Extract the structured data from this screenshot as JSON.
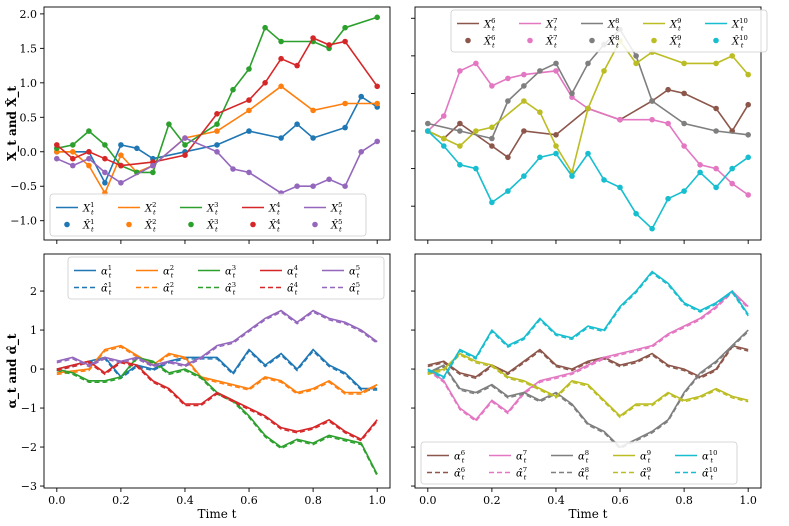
{
  "chart_data": [
    {
      "panel": "top-left",
      "type": "line",
      "xlim": [
        -0.04,
        1.04
      ],
      "ylim": [
        -1.28,
        2.1
      ],
      "yticks": [
        -1.0,
        -0.5,
        0.0,
        0.5,
        1.0,
        1.5,
        2.0
      ],
      "ytick_labels": [
        "−1.0",
        "−0.5",
        "0.0",
        "0.5",
        "1.0",
        "1.5",
        "2.0"
      ],
      "ylabel": "X_t and X̂_t",
      "legend_loc": "lower-left",
      "series": [
        {
          "name": "X1",
          "label": "X_t^1",
          "hat_label": "X̂_t^1",
          "color": "#1f77b4",
          "x": [
            0,
            0.1,
            0.15,
            0.2,
            0.25,
            0.3,
            0.4,
            0.5,
            0.6,
            0.7,
            0.75,
            0.8,
            0.9,
            0.95,
            1.0
          ],
          "y": [
            0.0,
            0.0,
            -0.45,
            0.1,
            0.05,
            -0.1,
            0.0,
            0.1,
            0.3,
            0.2,
            0.4,
            0.2,
            0.35,
            0.8,
            0.65
          ]
        },
        {
          "name": "X2",
          "label": "X_t^2",
          "hat_label": "X̂_t^2",
          "color": "#ff7f0e",
          "x": [
            0,
            0.05,
            0.1,
            0.15,
            0.2,
            0.25,
            0.3,
            0.4,
            0.5,
            0.6,
            0.7,
            0.8,
            0.9,
            1.0
          ],
          "y": [
            0.0,
            0.0,
            -0.2,
            -0.6,
            -0.05,
            -0.3,
            -0.2,
            0.2,
            0.3,
            0.6,
            0.95,
            0.6,
            0.7,
            0.7
          ]
        },
        {
          "name": "X3",
          "label": "X_t^3",
          "hat_label": "X̂_t^3",
          "color": "#2ca02c",
          "x": [
            0,
            0.05,
            0.1,
            0.15,
            0.2,
            0.25,
            0.3,
            0.35,
            0.4,
            0.5,
            0.55,
            0.6,
            0.65,
            0.7,
            0.8,
            0.85,
            0.9,
            1.0
          ],
          "y": [
            0.05,
            0.1,
            0.3,
            0.1,
            -0.2,
            -0.3,
            -0.3,
            0.4,
            0.1,
            0.4,
            0.9,
            1.2,
            1.8,
            1.6,
            1.6,
            1.5,
            1.8,
            1.95
          ]
        },
        {
          "name": "X4",
          "label": "X_t^4",
          "hat_label": "X̂_t^4",
          "color": "#d62728",
          "x": [
            0,
            0.05,
            0.1,
            0.15,
            0.2,
            0.3,
            0.4,
            0.5,
            0.6,
            0.65,
            0.7,
            0.75,
            0.8,
            0.85,
            0.9,
            1.0
          ],
          "y": [
            0.1,
            -0.1,
            0.0,
            -0.1,
            -0.2,
            -0.15,
            -0.05,
            0.55,
            0.75,
            1.0,
            1.35,
            1.25,
            1.65,
            1.55,
            1.6,
            0.95
          ]
        },
        {
          "name": "X5",
          "label": "X_t^5",
          "hat_label": "X̂_t^5",
          "color": "#9467bd",
          "x": [
            0,
            0.05,
            0.1,
            0.15,
            0.2,
            0.3,
            0.4,
            0.5,
            0.55,
            0.6,
            0.7,
            0.75,
            0.8,
            0.85,
            0.9,
            0.95,
            1.0
          ],
          "y": [
            -0.1,
            -0.2,
            -0.1,
            -0.3,
            -0.45,
            -0.2,
            0.2,
            0.0,
            -0.25,
            -0.3,
            -0.6,
            -0.5,
            -0.5,
            -0.4,
            -0.5,
            0.0,
            0.15
          ]
        }
      ]
    },
    {
      "panel": "top-right",
      "type": "line",
      "xlim": [
        -0.04,
        1.04
      ],
      "ylim": [
        -1.45,
        1.65
      ],
      "legend_loc": "top",
      "series": [
        {
          "name": "X6",
          "label": "X_t^6",
          "hat_label": "X̂_t^6",
          "color": "#8c564b",
          "x": [
            0,
            0.05,
            0.1,
            0.2,
            0.25,
            0.3,
            0.4,
            0.5,
            0.6,
            0.7,
            0.75,
            0.8,
            0.9,
            0.95,
            1.0
          ],
          "y": [
            0.0,
            -0.1,
            0.1,
            -0.2,
            -0.35,
            0.0,
            -0.05,
            0.3,
            0.15,
            0.4,
            0.55,
            0.5,
            0.3,
            0.0,
            0.35
          ]
        },
        {
          "name": "X7",
          "label": "X_t^7",
          "hat_label": "X̂_t^7",
          "color": "#e377c2",
          "x": [
            0,
            0.05,
            0.1,
            0.15,
            0.2,
            0.25,
            0.3,
            0.4,
            0.45,
            0.5,
            0.6,
            0.7,
            0.75,
            0.8,
            0.85,
            0.9,
            0.95,
            1.0
          ],
          "y": [
            0.0,
            0.2,
            0.8,
            0.9,
            0.6,
            0.7,
            0.75,
            0.8,
            0.45,
            0.3,
            0.15,
            0.15,
            0.1,
            -0.2,
            -0.45,
            -0.5,
            -0.7,
            -0.85
          ]
        },
        {
          "name": "X8",
          "label": "X_t^8",
          "hat_label": "X̂_t^8",
          "color": "#7f7f7f",
          "x": [
            0,
            0.1,
            0.2,
            0.25,
            0.3,
            0.35,
            0.4,
            0.45,
            0.5,
            0.55,
            0.6,
            0.65,
            0.7,
            0.8,
            0.9,
            1.0
          ],
          "y": [
            0.1,
            0.0,
            -0.1,
            0.4,
            0.6,
            0.8,
            0.9,
            0.5,
            0.9,
            1.15,
            1.35,
            1.0,
            0.4,
            0.1,
            0.0,
            -0.05
          ]
        },
        {
          "name": "X9",
          "label": "X_t^9",
          "hat_label": "X̂_t^9",
          "color": "#bcbd22",
          "x": [
            0,
            0.05,
            0.1,
            0.15,
            0.2,
            0.3,
            0.35,
            0.4,
            0.45,
            0.5,
            0.55,
            0.6,
            0.65,
            0.7,
            0.8,
            0.9,
            0.95,
            1.0
          ],
          "y": [
            0.0,
            -0.1,
            -0.2,
            0.0,
            0.05,
            0.4,
            0.25,
            -0.2,
            -0.55,
            0.3,
            0.8,
            1.2,
            0.9,
            1.05,
            0.9,
            0.9,
            1.0,
            0.75
          ]
        },
        {
          "name": "X10",
          "label": "X_t^10",
          "hat_label": "X̂_t^10",
          "color": "#17becf",
          "x": [
            0,
            0.05,
            0.1,
            0.15,
            0.2,
            0.25,
            0.3,
            0.35,
            0.4,
            0.45,
            0.5,
            0.55,
            0.6,
            0.65,
            0.7,
            0.75,
            0.8,
            0.85,
            0.9,
            0.95,
            1.0
          ],
          "y": [
            0.0,
            -0.2,
            -0.45,
            -0.5,
            -0.95,
            -0.8,
            -0.6,
            -0.35,
            -0.3,
            -0.6,
            -0.3,
            -0.65,
            -0.75,
            -1.1,
            -1.3,
            -0.9,
            -0.8,
            -0.55,
            -0.75,
            -0.5,
            -0.35
          ]
        }
      ]
    },
    {
      "panel": "bottom-left",
      "type": "line",
      "xlim": [
        -0.04,
        1.04
      ],
      "ylim": [
        -3.05,
        2.95
      ],
      "yticks": [
        -3,
        -2,
        -1,
        0,
        1,
        2
      ],
      "ytick_labels": [
        "−3",
        "−2",
        "−1",
        "0",
        "1",
        "2"
      ],
      "xticks": [
        0.0,
        0.2,
        0.4,
        0.6,
        0.8,
        1.0
      ],
      "xtick_labels": [
        "0.0",
        "0.2",
        "0.4",
        "0.6",
        "0.8",
        "1.0"
      ],
      "xlabel": "Time t",
      "ylabel": "α_t and α̂_t",
      "legend_loc": "top-right",
      "series": [
        {
          "name": "a1",
          "label": "α_t^1",
          "hat_label": "α̂_t^1",
          "color": "#1f77b4",
          "x": [
            0,
            0.1,
            0.15,
            0.2,
            0.25,
            0.3,
            0.35,
            0.4,
            0.5,
            0.55,
            0.6,
            0.65,
            0.7,
            0.75,
            0.8,
            0.85,
            0.9,
            0.95,
            1.0
          ],
          "y": [
            0.0,
            0.2,
            0.3,
            -0.2,
            0.1,
            0.0,
            0.2,
            0.3,
            0.3,
            -0.1,
            0.5,
            0.1,
            0.4,
            0.0,
            0.5,
            0.1,
            -0.1,
            -0.5,
            -0.5
          ]
        },
        {
          "name": "a2",
          "label": "α_t^2",
          "hat_label": "α̂_t^2",
          "color": "#ff7f0e",
          "x": [
            0,
            0.1,
            0.15,
            0.2,
            0.3,
            0.35,
            0.4,
            0.45,
            0.5,
            0.6,
            0.65,
            0.7,
            0.75,
            0.8,
            0.85,
            0.9,
            0.95,
            1.0
          ],
          "y": [
            -0.1,
            0.0,
            0.5,
            0.6,
            0.1,
            0.4,
            0.3,
            -0.2,
            -0.3,
            -0.5,
            -0.2,
            -0.3,
            -0.6,
            -0.5,
            -0.3,
            -0.6,
            -0.6,
            -0.4
          ]
        },
        {
          "name": "a3",
          "label": "α_t^3",
          "hat_label": "α̂_t^3",
          "color": "#2ca02c",
          "x": [
            0,
            0.05,
            0.1,
            0.15,
            0.2,
            0.25,
            0.3,
            0.35,
            0.4,
            0.45,
            0.5,
            0.55,
            0.6,
            0.65,
            0.7,
            0.75,
            0.8,
            0.85,
            0.9,
            0.95,
            1.0
          ],
          "y": [
            0.0,
            -0.1,
            -0.3,
            -0.3,
            -0.2,
            0.3,
            0.2,
            -0.1,
            0.0,
            -0.2,
            -0.6,
            -0.8,
            -1.2,
            -1.7,
            -2.0,
            -1.8,
            -1.9,
            -1.7,
            -1.8,
            -1.9,
            -2.7
          ]
        },
        {
          "name": "a4",
          "label": "α_t^4",
          "hat_label": "α̂_t^4",
          "color": "#d62728",
          "x": [
            0,
            0.05,
            0.1,
            0.15,
            0.2,
            0.25,
            0.3,
            0.35,
            0.4,
            0.45,
            0.5,
            0.55,
            0.6,
            0.65,
            0.7,
            0.75,
            0.8,
            0.85,
            0.9,
            0.95,
            1.0
          ],
          "y": [
            0.0,
            0.1,
            0.2,
            -0.1,
            0.2,
            0.1,
            -0.3,
            -0.5,
            -0.9,
            -0.9,
            -0.6,
            -0.8,
            -1.0,
            -1.2,
            -1.5,
            -1.6,
            -1.5,
            -1.3,
            -1.6,
            -1.8,
            -1.3
          ]
        },
        {
          "name": "a5",
          "label": "α_t^5",
          "hat_label": "α̂_t^5",
          "color": "#9467bd",
          "x": [
            0,
            0.05,
            0.1,
            0.15,
            0.2,
            0.25,
            0.3,
            0.35,
            0.4,
            0.45,
            0.5,
            0.55,
            0.6,
            0.65,
            0.7,
            0.75,
            0.8,
            0.85,
            0.9,
            0.95,
            1.0
          ],
          "y": [
            0.2,
            0.3,
            0.1,
            0.3,
            0.2,
            0.3,
            0.1,
            0.2,
            0.1,
            0.3,
            0.6,
            0.7,
            1.0,
            1.3,
            1.5,
            1.2,
            1.5,
            1.3,
            1.2,
            1.0,
            0.7
          ]
        }
      ]
    },
    {
      "panel": "bottom-right",
      "type": "line",
      "xlim": [
        -0.04,
        1.04
      ],
      "ylim": [
        -3.05,
        2.95
      ],
      "xticks": [
        0.0,
        0.2,
        0.4,
        0.6,
        0.8,
        1.0
      ],
      "xtick_labels": [
        "0.0",
        "0.2",
        "0.4",
        "0.6",
        "0.8",
        "1.0"
      ],
      "xlabel": "Time t",
      "legend_loc": "bottom",
      "series": [
        {
          "name": "a6",
          "label": "α_t^6",
          "hat_label": "α̂_t^6",
          "color": "#8c564b",
          "x": [
            0,
            0.05,
            0.1,
            0.15,
            0.2,
            0.25,
            0.3,
            0.35,
            0.4,
            0.45,
            0.5,
            0.55,
            0.6,
            0.65,
            0.7,
            0.75,
            0.8,
            0.85,
            0.9,
            0.95,
            1.0
          ],
          "y": [
            0.1,
            0.2,
            -0.1,
            -0.2,
            0.1,
            -0.1,
            0.2,
            0.5,
            0.1,
            0.0,
            0.2,
            0.3,
            0.1,
            0.2,
            0.4,
            0.1,
            0.0,
            -0.2,
            0.0,
            0.6,
            0.5
          ]
        },
        {
          "name": "a7",
          "label": "α_t^7",
          "hat_label": "α̂_t^7",
          "color": "#e377c2",
          "x": [
            0,
            0.05,
            0.1,
            0.15,
            0.2,
            0.25,
            0.3,
            0.35,
            0.4,
            0.45,
            0.5,
            0.55,
            0.6,
            0.65,
            0.7,
            0.75,
            0.8,
            0.85,
            0.9,
            0.95,
            1.0
          ],
          "y": [
            0.0,
            -0.3,
            -1.0,
            -1.3,
            -0.8,
            -1.1,
            -0.6,
            -0.3,
            -0.2,
            -0.1,
            0.1,
            0.3,
            0.4,
            0.5,
            0.6,
            0.9,
            1.1,
            1.3,
            1.6,
            2.0,
            1.6
          ]
        },
        {
          "name": "a8",
          "label": "α_t^8",
          "hat_label": "α̂_t^8",
          "color": "#7f7f7f",
          "x": [
            0,
            0.05,
            0.1,
            0.15,
            0.2,
            0.25,
            0.3,
            0.35,
            0.4,
            0.45,
            0.5,
            0.55,
            0.6,
            0.65,
            0.7,
            0.75,
            0.8,
            0.85,
            0.9,
            0.95,
            1.0
          ],
          "y": [
            -0.1,
            0.1,
            -0.5,
            -0.6,
            -0.4,
            -0.7,
            -0.6,
            -0.8,
            -0.6,
            -0.9,
            -1.4,
            -1.6,
            -2.0,
            -1.8,
            -1.6,
            -1.3,
            -0.6,
            -0.1,
            0.2,
            0.6,
            1.0
          ]
        },
        {
          "name": "a9",
          "label": "α_t^9",
          "hat_label": "α̂_t^9",
          "color": "#bcbd22",
          "x": [
            0,
            0.05,
            0.1,
            0.15,
            0.2,
            0.25,
            0.3,
            0.35,
            0.4,
            0.45,
            0.5,
            0.55,
            0.6,
            0.65,
            0.7,
            0.75,
            0.8,
            0.85,
            0.9,
            0.95,
            1.0
          ],
          "y": [
            -0.1,
            0.0,
            0.4,
            0.2,
            0.1,
            -0.2,
            -0.3,
            -0.5,
            -0.7,
            -0.3,
            -0.4,
            -0.8,
            -1.2,
            -0.9,
            -0.9,
            -0.6,
            -0.8,
            -0.7,
            -0.5,
            -0.7,
            -0.8
          ]
        },
        {
          "name": "a10",
          "label": "α_t^10",
          "hat_label": "α̂_t^10",
          "color": "#17becf",
          "x": [
            0,
            0.05,
            0.1,
            0.15,
            0.2,
            0.25,
            0.3,
            0.35,
            0.4,
            0.45,
            0.5,
            0.55,
            0.6,
            0.65,
            0.7,
            0.75,
            0.8,
            0.85,
            0.9,
            0.95,
            1.0
          ],
          "y": [
            0.0,
            -0.2,
            0.5,
            0.3,
            1.0,
            0.6,
            0.8,
            1.3,
            0.9,
            0.8,
            1.1,
            1.0,
            1.6,
            2.0,
            2.5,
            2.2,
            1.7,
            1.5,
            1.7,
            2.0,
            1.4
          ]
        }
      ]
    }
  ]
}
